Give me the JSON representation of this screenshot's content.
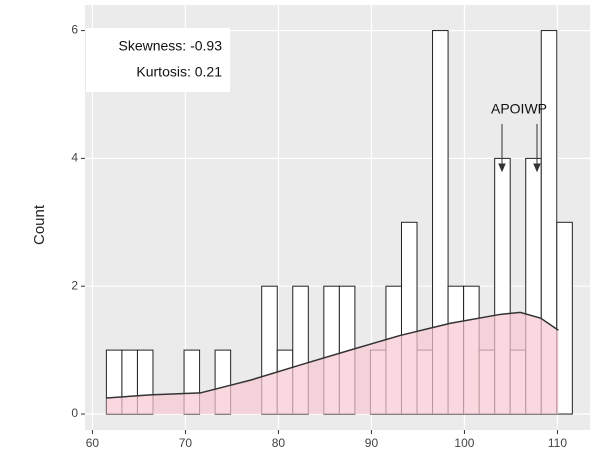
{
  "chart_data": {
    "type": "histogram",
    "ylabel": "Count",
    "bins": [
      61.5,
      63.17,
      64.84,
      66.51,
      68.18,
      69.85,
      71.52,
      73.19,
      74.86,
      76.53,
      78.2,
      79.87,
      81.54,
      83.21,
      84.88,
      86.55,
      88.22,
      89.89,
      91.56,
      93.23,
      94.9,
      96.57,
      98.24,
      99.91,
      101.58,
      103.25,
      104.92,
      106.59,
      108.26,
      109.93,
      111.6
    ],
    "counts": [
      1,
      1,
      1,
      0,
      0,
      1,
      0,
      1,
      0,
      0,
      2,
      1,
      2,
      0,
      2,
      2,
      0,
      1,
      2,
      3,
      1,
      6,
      2,
      2,
      1,
      4,
      1,
      4,
      6,
      3
    ],
    "bar_color": "#ffffff",
    "density": {
      "color": "#f8c8d2",
      "x": [
        61.5,
        66.2,
        71.6,
        77,
        82.4,
        87.7,
        93.1,
        98.5,
        103.9,
        106,
        108.2,
        110.1
      ],
      "y": [
        0.25,
        0.3,
        0.33,
        0.53,
        0.77,
        1.0,
        1.23,
        1.42,
        1.56,
        1.59,
        1.5,
        1.31
      ]
    },
    "xlim": [
      59.2,
      113.5
    ],
    "ylim": [
      -0.25,
      6.4
    ],
    "xticks": [
      60,
      70,
      80,
      90,
      100,
      110
    ],
    "yticks": [
      0,
      2,
      4,
      6
    ],
    "grid": true,
    "stats": [
      "Skewness: -0.93",
      "Kurtosis: 0.21"
    ],
    "annotation": "APOIWP"
  }
}
